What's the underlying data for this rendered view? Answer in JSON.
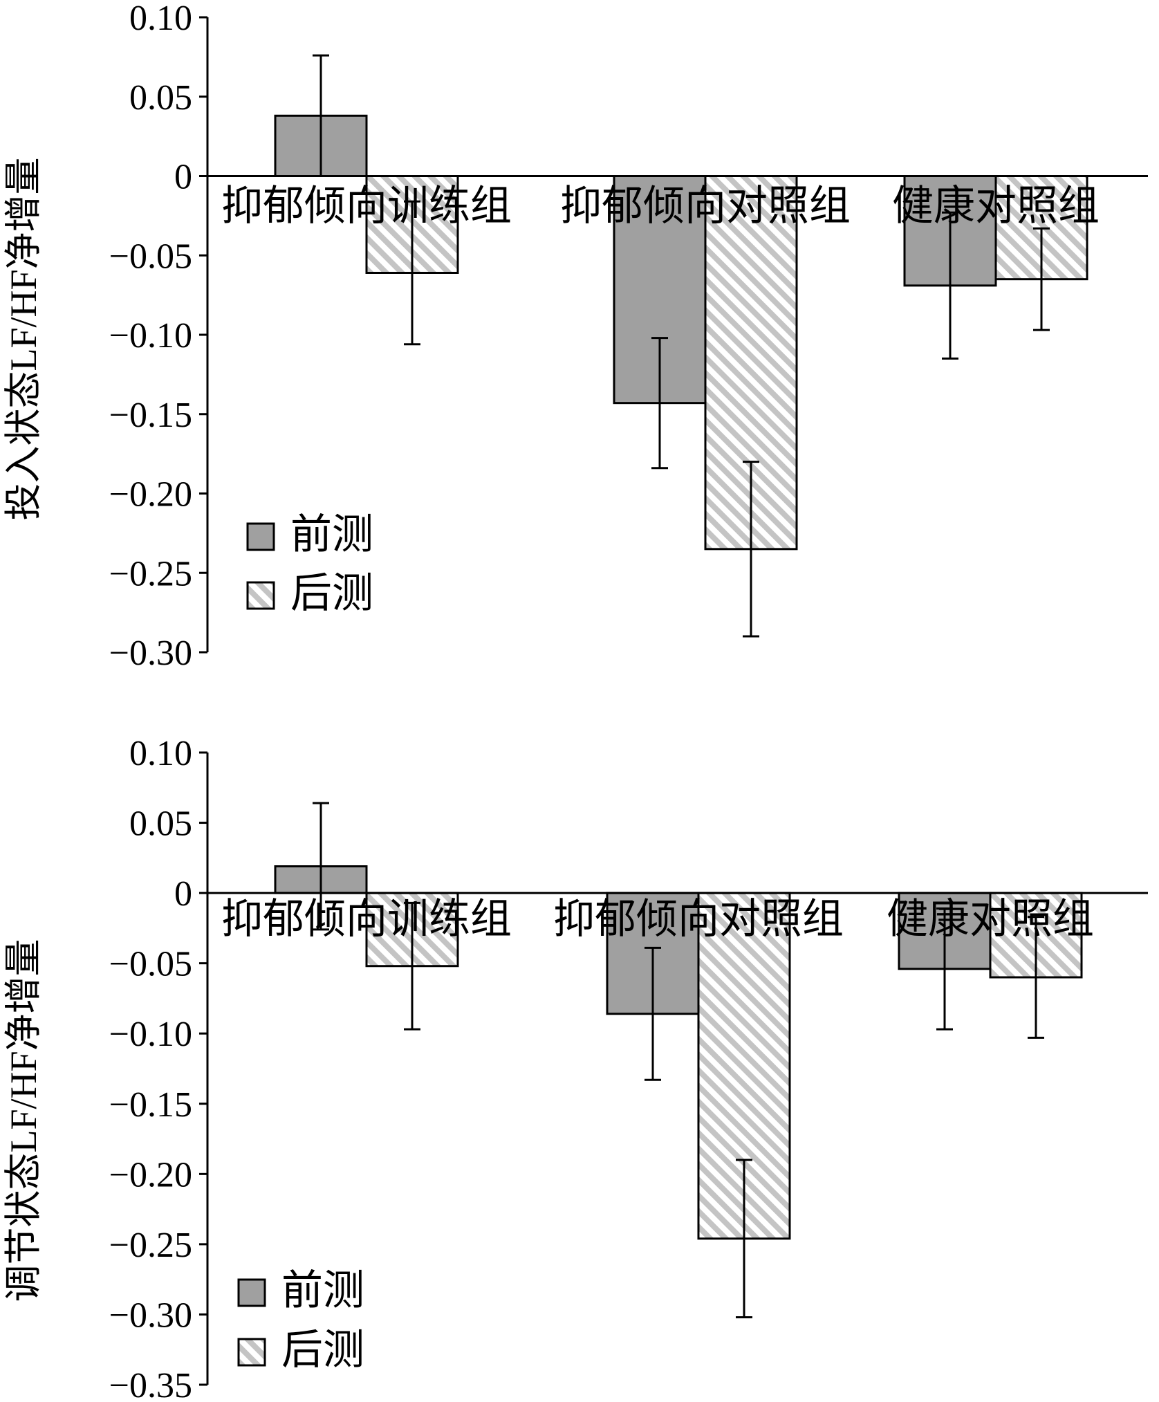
{
  "colors": {
    "pre_fill": "#a0a0a0",
    "post_stripe": "#c4c4c4",
    "axis": "#000000",
    "bar_stroke": "#000000"
  },
  "chart_data": [
    {
      "type": "bar",
      "ylabel": "投入状态LF/HF净增量",
      "categories": [
        "抑郁倾向训练组",
        "抑郁倾向对照组",
        "健康对照组"
      ],
      "ylim": [
        -0.3,
        0.1
      ],
      "yticks": [
        0.1,
        0.05,
        0,
        -0.05,
        -0.1,
        -0.15,
        -0.2,
        -0.25,
        -0.3
      ],
      "ytick_labels": [
        "0.10",
        "0.05",
        "0",
        "−0.05",
        "−0.10",
        "−0.15",
        "−0.20",
        "−0.25",
        "−0.30"
      ],
      "legend": {
        "position": "lower-left"
      },
      "series": [
        {
          "name": "前测",
          "values": [
            0.038,
            -0.143,
            -0.069
          ],
          "errors": [
            0.038,
            0.041,
            0.046
          ]
        },
        {
          "name": "后测",
          "values": [
            -0.061,
            -0.235,
            -0.065
          ],
          "errors": [
            0.045,
            0.055,
            0.032
          ]
        }
      ]
    },
    {
      "type": "bar",
      "ylabel": "调节状态LF/HF净增量",
      "categories": [
        "抑郁倾向训练组",
        "抑郁倾向对照组",
        "健康对照组"
      ],
      "ylim": [
        -0.35,
        0.1
      ],
      "yticks": [
        0.1,
        0.05,
        0,
        -0.05,
        -0.1,
        -0.15,
        -0.2,
        -0.25,
        -0.3,
        -0.35
      ],
      "ytick_labels": [
        "0.10",
        "0.05",
        "0",
        "−0.05",
        "−0.10",
        "−0.15",
        "−0.20",
        "−0.25",
        "−0.30",
        "−0.35"
      ],
      "legend": {
        "position": "lower-left"
      },
      "series": [
        {
          "name": "前测",
          "values": [
            0.019,
            -0.086,
            -0.054
          ],
          "errors": [
            0.045,
            0.047,
            0.043
          ]
        },
        {
          "name": "后测",
          "values": [
            -0.052,
            -0.246,
            -0.06
          ],
          "errors": [
            0.045,
            0.056,
            0.043
          ]
        }
      ]
    }
  ]
}
